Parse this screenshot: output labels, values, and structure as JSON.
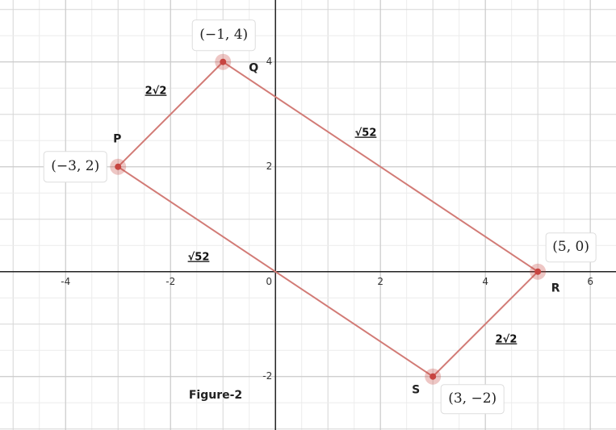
{
  "chart_data": {
    "type": "polygon",
    "x": [
      -3,
      -1,
      5,
      3
    ],
    "values": [
      2,
      4,
      0,
      -2
    ],
    "point_names": [
      "P",
      "Q",
      "R",
      "S"
    ],
    "point_labels": [
      "(−3, 2)",
      "(−1, 4)",
      "(5, 0)",
      "(3, −2)"
    ],
    "side_labels": [
      "2√2",
      "√52",
      "2√2",
      "√52"
    ],
    "caption": "Figure-2",
    "color": "#d27b76",
    "point_color": "#c74440",
    "xlim": [
      -5.25,
      6.49
    ],
    "ylim": [
      -3.02,
      5.18
    ],
    "xticks": [
      -4,
      -2,
      0,
      2,
      4,
      6
    ],
    "yticks": [
      -2,
      2,
      4
    ],
    "grid": true
  }
}
